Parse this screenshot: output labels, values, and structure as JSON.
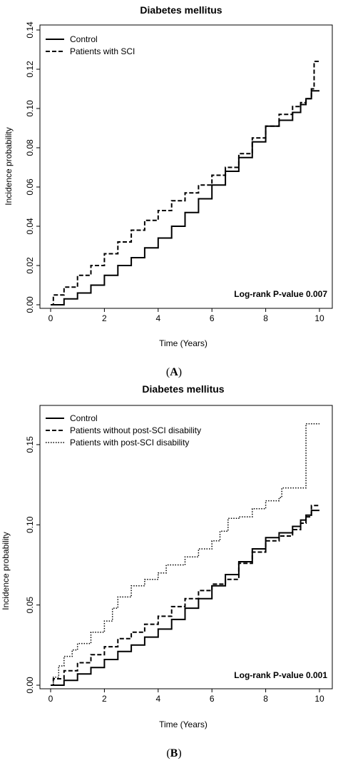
{
  "chart_data": [
    {
      "panel": "A",
      "type": "line",
      "title": "Diabetes mellitus",
      "xlabel": "Time (Years)",
      "ylabel": "Incidence probability",
      "xlim": [
        0,
        10
      ],
      "ylim": [
        0,
        0.14
      ],
      "x_ticks": [
        0,
        2,
        4,
        6,
        8,
        10
      ],
      "y_ticks": [
        0.0,
        0.02,
        0.04,
        0.06,
        0.08,
        0.1,
        0.12,
        0.14
      ],
      "y_tick_labels": [
        "0.00",
        "0.02",
        "0.04",
        "0.06",
        "0.08",
        "0.10",
        "0.12",
        "0.14"
      ],
      "legend_position": "top-left",
      "annotation": "Log-rank P-value 0.007",
      "series": [
        {
          "name": "Control",
          "style": "solid",
          "x": [
            0,
            0.5,
            1,
            1.5,
            2,
            2.5,
            3,
            3.5,
            4,
            4.5,
            5,
            5.5,
            6,
            6.5,
            7,
            7.5,
            8,
            8.5,
            9,
            9.3,
            9.5,
            9.6,
            9.7,
            10
          ],
          "y": [
            0.0,
            0.003,
            0.006,
            0.01,
            0.015,
            0.02,
            0.024,
            0.029,
            0.034,
            0.04,
            0.047,
            0.054,
            0.061,
            0.068,
            0.075,
            0.083,
            0.091,
            0.094,
            0.098,
            0.102,
            0.105,
            0.105,
            0.109,
            0.109
          ]
        },
        {
          "name": "Patients with SCI",
          "style": "dashed",
          "x": [
            0,
            0.1,
            0.5,
            1,
            1.5,
            2,
            2.5,
            3,
            3.5,
            4,
            4.5,
            5,
            5.5,
            6,
            6.5,
            7,
            7.5,
            8,
            8.5,
            9,
            9.3,
            9.5,
            9.7,
            9.8,
            10
          ],
          "y": [
            0.0,
            0.005,
            0.009,
            0.015,
            0.02,
            0.026,
            0.032,
            0.038,
            0.043,
            0.048,
            0.053,
            0.057,
            0.061,
            0.066,
            0.07,
            0.077,
            0.085,
            0.091,
            0.097,
            0.101,
            0.103,
            0.105,
            0.11,
            0.124,
            0.124
          ]
        }
      ]
    },
    {
      "panel": "B",
      "type": "line",
      "title": "Diabetes mellitus",
      "xlabel": "Time (Years)",
      "ylabel": "Incidence probability",
      "xlim": [
        0,
        10
      ],
      "ylim": [
        0,
        0.17
      ],
      "x_ticks": [
        0,
        2,
        4,
        6,
        8,
        10
      ],
      "y_ticks": [
        0.0,
        0.05,
        0.1,
        0.15
      ],
      "y_tick_labels": [
        "0.00",
        "0.05",
        "0.10",
        "0.15"
      ],
      "legend_position": "top-left",
      "annotation": "Log-rank P-value 0.001",
      "series": [
        {
          "name": "Control",
          "style": "solid",
          "x": [
            0,
            0.5,
            1,
            1.5,
            2,
            2.5,
            3,
            3.5,
            4,
            4.5,
            5,
            5.5,
            6,
            6.5,
            7,
            7.5,
            8,
            8.5,
            9,
            9.3,
            9.5,
            9.6,
            9.7,
            10
          ],
          "y": [
            0.0,
            0.003,
            0.007,
            0.011,
            0.016,
            0.021,
            0.025,
            0.03,
            0.035,
            0.041,
            0.048,
            0.054,
            0.062,
            0.069,
            0.077,
            0.085,
            0.092,
            0.095,
            0.099,
            0.103,
            0.106,
            0.106,
            0.109,
            0.109
          ]
        },
        {
          "name": "Patients without post-SCI disability",
          "style": "dashed",
          "x": [
            0,
            0.1,
            0.5,
            1,
            1.5,
            2,
            2.5,
            3,
            3.5,
            4,
            4.5,
            5,
            5.5,
            6,
            6.5,
            7,
            7.5,
            8,
            8.5,
            9,
            9.3,
            9.5,
            9.7,
            10
          ],
          "y": [
            0.0,
            0.004,
            0.009,
            0.014,
            0.019,
            0.024,
            0.029,
            0.033,
            0.038,
            0.043,
            0.049,
            0.054,
            0.059,
            0.063,
            0.066,
            0.076,
            0.083,
            0.09,
            0.093,
            0.097,
            0.101,
            0.105,
            0.112,
            0.112
          ]
        },
        {
          "name": "Patients with post-SCI disability",
          "style": "dotted",
          "x": [
            0,
            0.1,
            0.3,
            0.5,
            0.8,
            1,
            1.5,
            2,
            2.3,
            2.5,
            3,
            3.5,
            4,
            4.3,
            5,
            5.5,
            6,
            6.3,
            6.6,
            7,
            7.5,
            8,
            8.5,
            8.6,
            9,
            9.4,
            9.5,
            10
          ],
          "y": [
            0.0,
            0.005,
            0.012,
            0.018,
            0.022,
            0.026,
            0.033,
            0.04,
            0.048,
            0.055,
            0.062,
            0.066,
            0.07,
            0.075,
            0.08,
            0.085,
            0.09,
            0.096,
            0.104,
            0.105,
            0.11,
            0.115,
            0.117,
            0.123,
            0.123,
            0.123,
            0.163,
            0.163
          ]
        }
      ]
    }
  ],
  "panel_labels": {
    "a": {
      "open": "(",
      "letter": "A",
      "close": ")"
    },
    "b": {
      "open": "(",
      "letter": "B",
      "close": ")"
    }
  }
}
